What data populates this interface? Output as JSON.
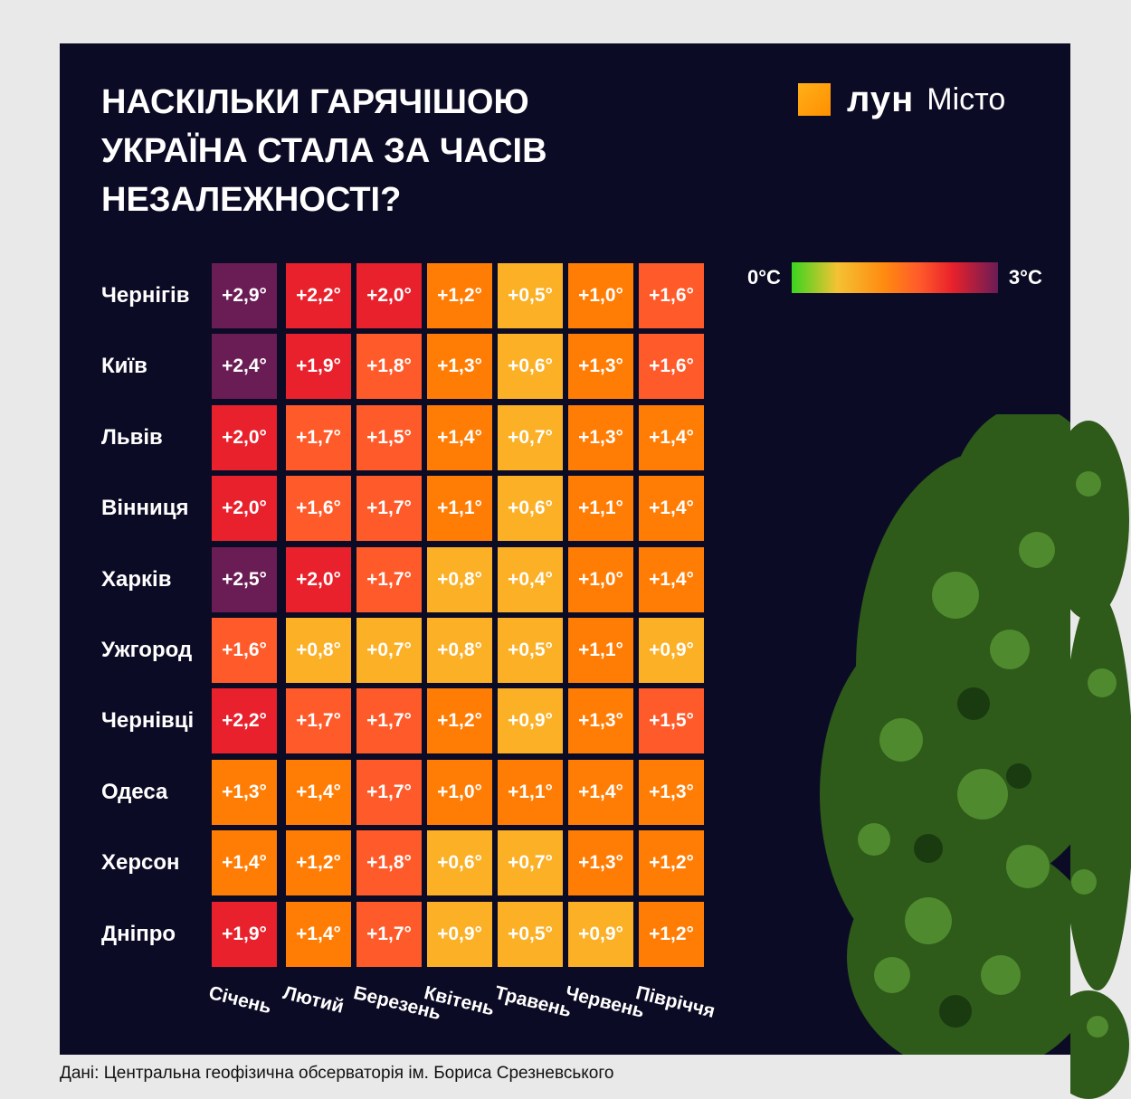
{
  "title": "Наскільки гарячішою Україна стала за часів незалежності?",
  "logo": {
    "brand": "лун",
    "sub": "Місто"
  },
  "legend": {
    "min_label": "0°C",
    "max_label": "3°C"
  },
  "source": "Дані: Центральна геофізична обсерваторія ім. Бориса Срезневського",
  "chart_data": {
    "type": "heatmap",
    "title": "Наскільки гарячішою Україна стала за часів незалежності?",
    "columns": [
      "Січень",
      "Лютий",
      "Березень",
      "Квітень",
      "Травень",
      "Червень",
      "Півріччя"
    ],
    "rows": [
      "Чернігів",
      "Київ",
      "Львів",
      "Вінниця",
      "Харків",
      "Ужгород",
      "Чернівці",
      "Одеса",
      "Херсон",
      "Дніпро"
    ],
    "values": [
      [
        2.9,
        2.2,
        2.0,
        1.2,
        0.5,
        1.0,
        1.6
      ],
      [
        2.4,
        1.9,
        1.8,
        1.3,
        0.6,
        1.3,
        1.6
      ],
      [
        2.0,
        1.7,
        1.5,
        1.4,
        0.7,
        1.3,
        1.4
      ],
      [
        2.0,
        1.6,
        1.7,
        1.1,
        0.6,
        1.1,
        1.4
      ],
      [
        2.5,
        2.0,
        1.7,
        0.8,
        0.4,
        1.0,
        1.4
      ],
      [
        1.6,
        0.8,
        0.7,
        0.8,
        0.5,
        1.1,
        0.9
      ],
      [
        2.2,
        1.7,
        1.7,
        1.2,
        0.9,
        1.3,
        1.5
      ],
      [
        1.3,
        1.4,
        1.7,
        1.0,
        1.1,
        1.4,
        1.3
      ],
      [
        1.4,
        1.2,
        1.8,
        0.6,
        0.7,
        1.3,
        1.2
      ],
      [
        1.9,
        1.4,
        1.7,
        0.9,
        0.5,
        0.9,
        1.2
      ]
    ],
    "labels": [
      [
        "+2,9°",
        "+2,2°",
        "+2,0°",
        "+1,2°",
        "+0,5°",
        "+1,0°",
        "+1,6°"
      ],
      [
        "+2,4°",
        "+1,9°",
        "+1,8°",
        "+1,3°",
        "+0,6°",
        "+1,3°",
        "+1,6°"
      ],
      [
        "+2,0°",
        "+1,7°",
        "+1,5°",
        "+1,4°",
        "+0,7°",
        "+1,3°",
        "+1,4°"
      ],
      [
        "+2,0°",
        "+1,6°",
        "+1,7°",
        "+1,1°",
        "+0,6°",
        "+1,1°",
        "+1,4°"
      ],
      [
        "+2,5°",
        "+2,0°",
        "+1,7°",
        "+0,8°",
        "+0,4°",
        "+1,0°",
        "+1,4°"
      ],
      [
        "+1,6°",
        "+0,8°",
        "+0,7°",
        "+0,8°",
        "+0,5°",
        "+1,1°",
        "+0,9°"
      ],
      [
        "+2,2°",
        "+1,7°",
        "+1,7°",
        "+1,2°",
        "+0,9°",
        "+1,3°",
        "+1,5°"
      ],
      [
        "+1,3°",
        "+1,4°",
        "+1,7°",
        "+1,0°",
        "+1,1°",
        "+1,4°",
        "+1,3°"
      ],
      [
        "+1,4°",
        "+1,2°",
        "+1,8°",
        "+0,6°",
        "+0,7°",
        "+1,3°",
        "+1,2°"
      ],
      [
        "+1,9°",
        "+1,4°",
        "+1,7°",
        "+0,9°",
        "+0,5°",
        "+0,9°",
        "+1,2°"
      ]
    ],
    "color_range": [
      0,
      3
    ],
    "colors": {
      "purple": "#6a1c55",
      "red": "#e8212c",
      "coral": "#ff5a2a",
      "orange": "#ff7d05",
      "yellow": "#fbb026",
      "panel_bg": "#0c0b25"
    }
  }
}
